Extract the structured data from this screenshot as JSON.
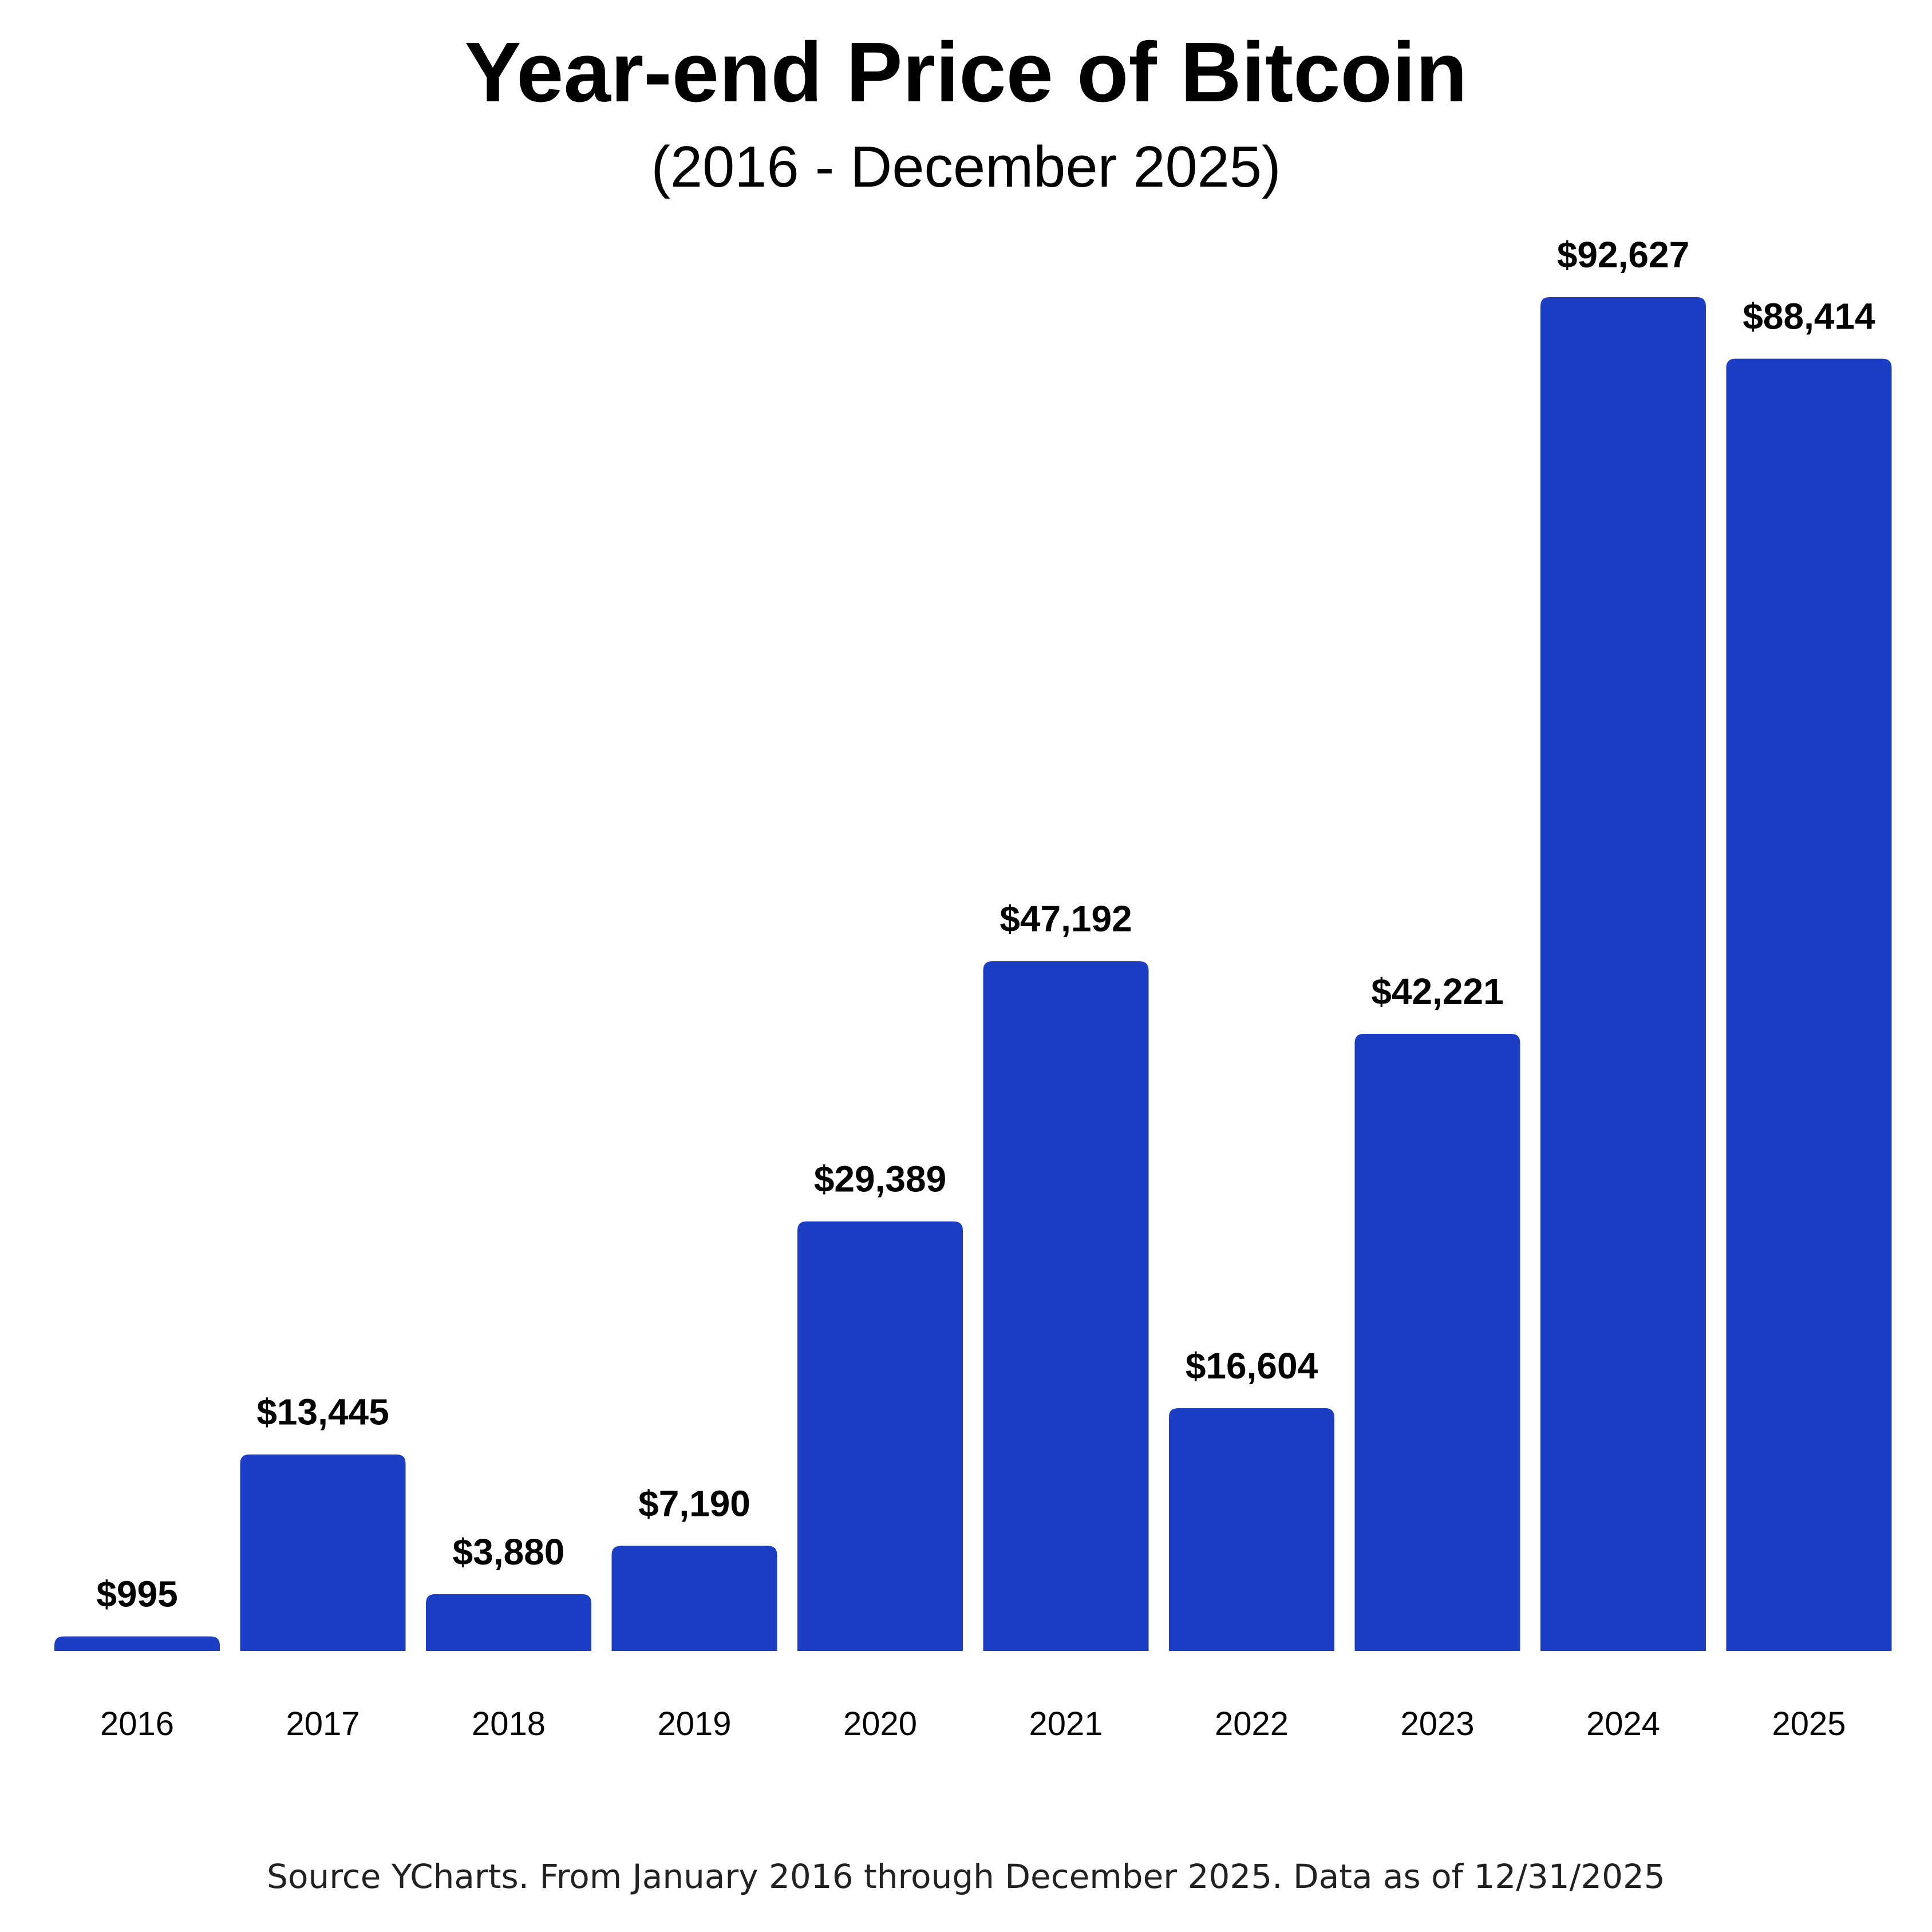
{
  "header": {
    "title": "Year-end Price of Bitcoin",
    "subtitle": "(2016 - December 2025)"
  },
  "footer": {
    "source": "Source YCharts. From January 2016 through December 2025. Data as of 12/31/2025"
  },
  "colors": {
    "bar": "#1b3ec4",
    "text": "#000000"
  },
  "chart_data": {
    "type": "bar",
    "title": "Year-end Price of Bitcoin",
    "subtitle": "(2016 - December 2025)",
    "xlabel": "",
    "ylabel": "",
    "grid": false,
    "legend": "none",
    "ylim": [
      0,
      92627
    ],
    "categories": [
      "2016",
      "2017",
      "2018",
      "2019",
      "2020",
      "2021",
      "2022",
      "2023",
      "2024",
      "2025"
    ],
    "values": [
      995,
      13445,
      3880,
      7190,
      29389,
      47192,
      16604,
      42221,
      92627,
      88414
    ],
    "data_labels": [
      "$995",
      "$13,445",
      "$3,880",
      "$7,190",
      "$29,389",
      "$47,192",
      "$16,604",
      "$42,221",
      "$92,627",
      "$88,414"
    ]
  }
}
